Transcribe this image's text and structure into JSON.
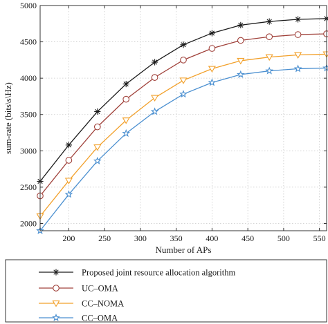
{
  "chart_data": {
    "type": "line",
    "xlabel": "Number of APs",
    "ylabel": "sum-rate (bits\\s\\Hz)",
    "xlim": [
      160,
      560
    ],
    "ylim": [
      1900,
      5000
    ],
    "xticks": [
      200,
      250,
      300,
      350,
      400,
      450,
      500,
      550
    ],
    "yticks": [
      2000,
      2500,
      3000,
      3500,
      4000,
      4500,
      5000
    ],
    "x": [
      160,
      200,
      240,
      280,
      320,
      360,
      400,
      440,
      480,
      520,
      560
    ],
    "grid": true,
    "legend_position": "bottom-outside",
    "series": [
      {
        "name": "Proposed joint resource allocation algorithm",
        "color": "#1a1a1a",
        "marker": "asterisk",
        "values": [
          2580,
          3080,
          3540,
          3920,
          4220,
          4460,
          4620,
          4730,
          4780,
          4810,
          4820
        ]
      },
      {
        "name": "UC–OMA",
        "color": "#a0413a",
        "marker": "circle",
        "values": [
          2380,
          2870,
          3330,
          3710,
          4010,
          4250,
          4410,
          4520,
          4570,
          4600,
          4610
        ]
      },
      {
        "name": "CC–NOMA",
        "color": "#f2a02a",
        "marker": "triangle-down",
        "values": [
          2100,
          2590,
          3050,
          3420,
          3730,
          3970,
          4130,
          4240,
          4290,
          4320,
          4330
        ]
      },
      {
        "name": "CC–OMA",
        "color": "#4a8fd0",
        "marker": "star",
        "values": [
          1900,
          2400,
          2860,
          3240,
          3540,
          3780,
          3940,
          4050,
          4100,
          4130,
          4140
        ]
      }
    ]
  }
}
